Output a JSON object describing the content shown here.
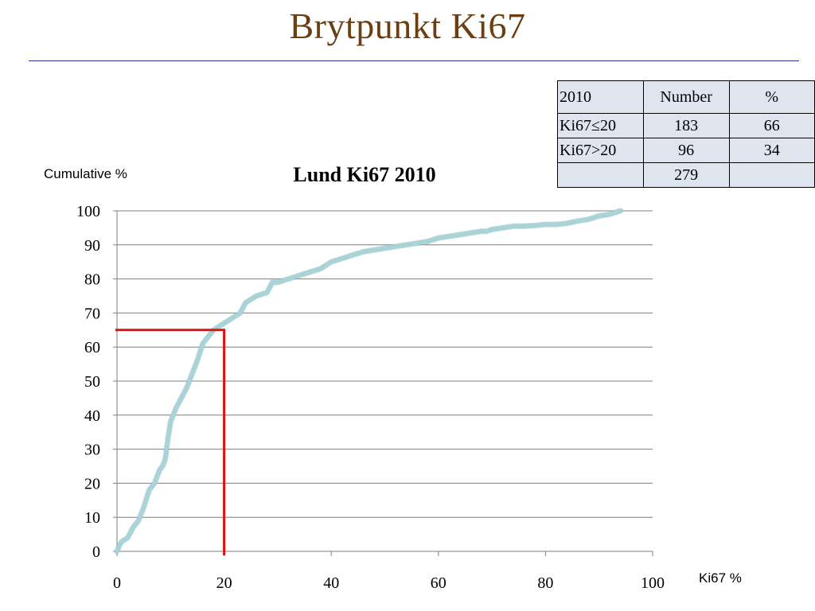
{
  "slide": {
    "title": "Brytpunkt Ki67",
    "y_axis_caption": "Cumulative %",
    "x_axis_caption": "Ki67 %"
  },
  "table": {
    "header": [
      "2010",
      "Number",
      "%"
    ],
    "rows": [
      [
        "Ki67≤20",
        "183",
        "66"
      ],
      [
        "Ki67>20",
        "96",
        "34"
      ],
      [
        "",
        "279",
        ""
      ]
    ]
  },
  "chart_data": {
    "type": "line",
    "title": "Lund Ki67 2010",
    "xlabel": "Ki67 %",
    "ylabel": "Cumulative %",
    "xlim": [
      0,
      100
    ],
    "ylim": [
      0,
      100
    ],
    "xticks": [
      0,
      20,
      40,
      60,
      80,
      100
    ],
    "yticks": [
      0,
      10,
      20,
      30,
      40,
      50,
      60,
      70,
      80,
      90,
      100
    ],
    "grid": "horizontal",
    "series": [
      {
        "color": "#a8d3d7",
        "x": [
          0,
          0.5,
          1,
          2,
          3,
          4,
          5,
          6,
          7,
          8,
          8.5,
          9,
          9.5,
          10,
          11,
          12,
          13,
          14,
          15,
          16,
          17,
          18,
          19,
          20,
          21,
          22,
          23,
          24,
          25,
          26,
          27,
          28,
          29,
          30,
          32,
          34,
          36,
          38,
          40,
          42,
          44,
          46,
          48,
          50,
          52,
          54,
          56,
          58,
          60,
          62,
          64,
          66,
          68,
          69,
          70,
          72,
          74,
          76,
          78,
          80,
          82,
          84,
          86,
          88,
          89,
          90,
          92,
          94
        ],
        "y": [
          0,
          2,
          3,
          4,
          7,
          9,
          13,
          18,
          20,
          24,
          25,
          27,
          33,
          38,
          42,
          45,
          48,
          52,
          56,
          61,
          63,
          65,
          66,
          67,
          68,
          69,
          70,
          73,
          74,
          75,
          75.5,
          76,
          79,
          79,
          80,
          81,
          82,
          83,
          85,
          86,
          87,
          88,
          88.5,
          89,
          89.5,
          90,
          90.5,
          91,
          92,
          92.5,
          93,
          93.5,
          94,
          94,
          94.5,
          95,
          95.5,
          95.5,
          95.7,
          96,
          96,
          96.3,
          97,
          97.5,
          98,
          98.5,
          99,
          100
        ]
      }
    ],
    "annotations": [
      {
        "type": "cutoff-marker",
        "x": 20,
        "y": 65,
        "color": "#e01010"
      }
    ]
  }
}
